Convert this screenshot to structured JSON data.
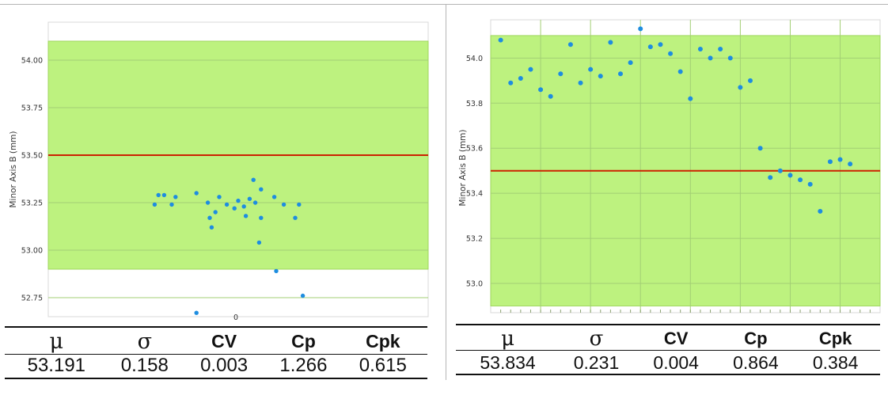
{
  "colors": {
    "band": "#bdf27f",
    "band_edge": "#9fd65e",
    "nominal_line": "#cc2200",
    "point": "#1e8de0",
    "grid": "#cfd6cf"
  },
  "chart_data": [
    {
      "type": "scatter",
      "ylabel": "Minor Axis B (mm)",
      "yticks": [
        "52.75",
        "53.00",
        "53.25",
        "53.50",
        "53.75",
        "54.00"
      ],
      "xtick_label": "0",
      "tolerance_band": [
        52.9,
        54.1
      ],
      "nominal": 53.5,
      "ylim": [
        52.65,
        54.2
      ],
      "x_range": [
        -1,
        1
      ],
      "points": [
        [
          -0.42,
          53.29
        ],
        [
          -0.39,
          53.29
        ],
        [
          -0.44,
          53.24
        ],
        [
          -0.35,
          53.24
        ],
        [
          -0.33,
          53.28
        ],
        [
          -0.22,
          53.3
        ],
        [
          -0.16,
          53.25
        ],
        [
          -0.1,
          53.28
        ],
        [
          -0.06,
          53.24
        ],
        [
          -0.02,
          53.22
        ],
        [
          0.0,
          53.26
        ],
        [
          0.03,
          53.23
        ],
        [
          0.06,
          53.27
        ],
        [
          0.08,
          53.37
        ],
        [
          0.12,
          53.32
        ],
        [
          0.04,
          53.18
        ],
        [
          -0.12,
          53.2
        ],
        [
          -0.15,
          53.17
        ],
        [
          -0.14,
          53.12
        ],
        [
          0.12,
          53.17
        ],
        [
          0.19,
          53.28
        ],
        [
          0.24,
          53.24
        ],
        [
          0.09,
          53.25
        ],
        [
          0.32,
          53.24
        ],
        [
          0.3,
          53.17
        ],
        [
          0.11,
          53.04
        ],
        [
          0.2,
          52.89
        ],
        [
          0.34,
          52.76
        ],
        [
          -0.22,
          52.67
        ]
      ],
      "stats": {
        "headers": [
          "μ",
          "σ",
          "CV",
          "Cp",
          "Cpk"
        ],
        "values": [
          "53.191",
          "0.158",
          "0.003",
          "1.266",
          "0.615"
        ]
      }
    },
    {
      "type": "scatter",
      "ylabel": "Minor Axis B (mm)",
      "yticks": [
        "53.0",
        "53.2",
        "53.4",
        "53.6",
        "53.8",
        "54.0"
      ],
      "tolerance_band": [
        52.9,
        54.1
      ],
      "nominal": 53.5,
      "ylim": [
        52.87,
        54.17
      ],
      "x_range": [
        0,
        39
      ],
      "points": [
        [
          1,
          54.08
        ],
        [
          2,
          53.89
        ],
        [
          3,
          53.91
        ],
        [
          4,
          53.95
        ],
        [
          5,
          53.86
        ],
        [
          6,
          53.83
        ],
        [
          7,
          53.93
        ],
        [
          8,
          54.06
        ],
        [
          9,
          53.89
        ],
        [
          10,
          53.95
        ],
        [
          11,
          53.92
        ],
        [
          12,
          54.07
        ],
        [
          13,
          53.93
        ],
        [
          14,
          53.98
        ],
        [
          15,
          54.13
        ],
        [
          16,
          54.05
        ],
        [
          17,
          54.06
        ],
        [
          18,
          54.02
        ],
        [
          19,
          53.94
        ],
        [
          20,
          53.82
        ],
        [
          21,
          54.04
        ],
        [
          22,
          54.0
        ],
        [
          23,
          54.04
        ],
        [
          24,
          54.0
        ],
        [
          25,
          53.87
        ],
        [
          26,
          53.9
        ],
        [
          27,
          53.6
        ],
        [
          28,
          53.47
        ],
        [
          29,
          53.5
        ],
        [
          30,
          53.48
        ],
        [
          31,
          53.46
        ],
        [
          32,
          53.44
        ],
        [
          33,
          53.32
        ],
        [
          34,
          53.54
        ],
        [
          35,
          53.55
        ],
        [
          36,
          53.53
        ]
      ],
      "stats": {
        "headers": [
          "μ",
          "σ",
          "CV",
          "Cp",
          "Cpk"
        ],
        "values": [
          "53.834",
          "0.231",
          "0.004",
          "0.864",
          "0.384"
        ]
      }
    }
  ]
}
